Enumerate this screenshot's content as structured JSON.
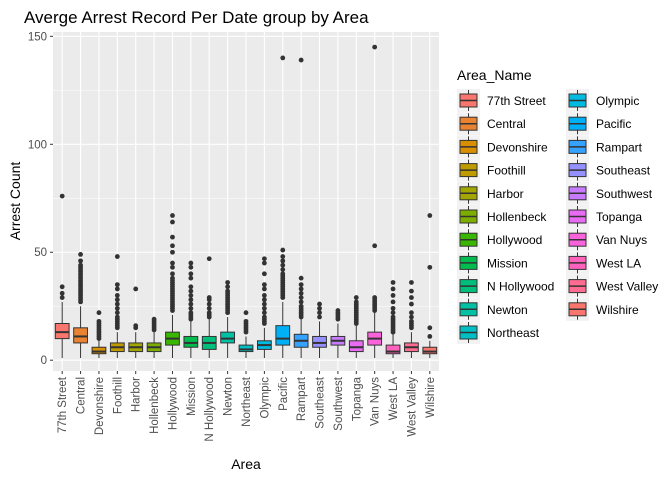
{
  "chart_data": {
    "type": "box",
    "title": "Averge Arrest Record Per Date group by Area",
    "xlabel": "Area",
    "ylabel": "Arrest Count",
    "ylim": [
      -5,
      152
    ],
    "yticks": [
      0,
      50,
      100,
      150
    ],
    "grid": true,
    "legend": {
      "title": "Area_Name",
      "position": "right"
    },
    "categories": [
      "77th Street",
      "Central",
      "Devonshire",
      "Foothill",
      "Harbor",
      "Hollenbeck",
      "Hollywood",
      "Mission",
      "N Hollywood",
      "Newton",
      "Northeast",
      "Olympic",
      "Pacific",
      "Rampart",
      "Southeast",
      "Southwest",
      "Topanga",
      "Van Nuys",
      "West LA",
      "West Valley",
      "Wilshire"
    ],
    "colors": [
      "#F8766D",
      "#EA8331",
      "#D89000",
      "#C09B00",
      "#A3A500",
      "#7CAE00",
      "#39B600",
      "#00BB4E",
      "#00BF7D",
      "#00C1A3",
      "#00BFC4",
      "#00BAE0",
      "#00B0F6",
      "#35A2FF",
      "#9590FF",
      "#C77CFF",
      "#E76BF3",
      "#FA62DB",
      "#FF62BC",
      "#FF6C91",
      "#F8766D"
    ],
    "boxes": [
      {
        "area": "77th Street",
        "min": 1,
        "q1": 10,
        "median": 13,
        "q3": 17,
        "max": 27,
        "outliers": [
          29,
          31,
          34,
          76
        ]
      },
      {
        "area": "Central",
        "min": 1,
        "q1": 8,
        "median": 11,
        "q3": 15,
        "max": 25,
        "outliers": [
          27,
          28,
          29,
          30,
          31,
          32,
          33,
          34,
          35,
          36,
          37,
          38,
          39,
          40,
          41,
          42,
          43,
          44,
          46,
          49
        ]
      },
      {
        "area": "Devonshire",
        "min": 1,
        "q1": 3,
        "median": 4,
        "q3": 6,
        "max": 9,
        "outliers": [
          10,
          11,
          12,
          13,
          14,
          15,
          16,
          17,
          18,
          22
        ]
      },
      {
        "area": "Foothill",
        "min": 1,
        "q1": 4,
        "median": 6,
        "q3": 8,
        "max": 13,
        "outliers": [
          15,
          16,
          17,
          18,
          19,
          20,
          22,
          24,
          26,
          28,
          30,
          33,
          35,
          48
        ]
      },
      {
        "area": "Harbor",
        "min": 1,
        "q1": 4,
        "median": 6,
        "q3": 8,
        "max": 13,
        "outliers": [
          15,
          16,
          33
        ]
      },
      {
        "area": "Hollenbeck",
        "min": 1,
        "q1": 4,
        "median": 6,
        "q3": 8,
        "max": 13,
        "outliers": [
          14,
          15,
          16,
          17,
          18,
          19
        ]
      },
      {
        "area": "Hollywood",
        "min": 1,
        "q1": 7,
        "median": 10,
        "q3": 13,
        "max": 21,
        "outliers": [
          23,
          24,
          25,
          26,
          27,
          28,
          29,
          30,
          31,
          32,
          33,
          34,
          35,
          36,
          37,
          38,
          40,
          43,
          45,
          50,
          53,
          57,
          64,
          67
        ]
      },
      {
        "area": "Mission",
        "min": 1,
        "q1": 6,
        "median": 8,
        "q3": 11,
        "max": 18,
        "outliers": [
          19,
          20,
          21,
          22,
          24,
          26,
          28,
          30,
          32,
          34,
          38,
          40,
          43,
          45
        ]
      },
      {
        "area": "N Hollywood",
        "min": 1,
        "q1": 5,
        "median": 8,
        "q3": 11,
        "max": 19,
        "outliers": [
          20,
          21,
          22,
          24,
          26,
          28,
          29,
          47
        ]
      },
      {
        "area": "Newton",
        "min": 1,
        "q1": 8,
        "median": 10,
        "q3": 13,
        "max": 20,
        "outliers": [
          22,
          23,
          24,
          25,
          26,
          27,
          28,
          29,
          30,
          31,
          32,
          34,
          36
        ]
      },
      {
        "area": "Northeast",
        "min": 1,
        "q1": 4,
        "median": 5,
        "q3": 7,
        "max": 11,
        "outliers": [
          13,
          14,
          15,
          16,
          17,
          18,
          22
        ]
      },
      {
        "area": "Olympic",
        "min": 1,
        "q1": 5,
        "median": 7,
        "q3": 9,
        "max": 15,
        "outliers": [
          17,
          18,
          19,
          20,
          22,
          24,
          26,
          28,
          30,
          33,
          35,
          40,
          45,
          47
        ]
      },
      {
        "area": "Pacific",
        "min": 1,
        "q1": 7,
        "median": 10,
        "q3": 16,
        "max": 27,
        "outliers": [
          29,
          30,
          31,
          32,
          33,
          34,
          35,
          36,
          37,
          38,
          39,
          40,
          42,
          44,
          46,
          48,
          51,
          140
        ]
      },
      {
        "area": "Rampart",
        "min": 1,
        "q1": 6,
        "median": 9,
        "q3": 12,
        "max": 19,
        "outliers": [
          20,
          21,
          22,
          23,
          24,
          25,
          27,
          29,
          31,
          33,
          35,
          38,
          139
        ]
      },
      {
        "area": "Southeast",
        "min": 1,
        "q1": 6,
        "median": 8,
        "q3": 11,
        "max": 18,
        "outliers": [
          20,
          22,
          24,
          26
        ]
      },
      {
        "area": "Southwest",
        "min": 1,
        "q1": 7,
        "median": 9,
        "q3": 11,
        "max": 17,
        "outliers": [
          19,
          20,
          21,
          22,
          23
        ]
      },
      {
        "area": "Topanga",
        "min": 1,
        "q1": 4,
        "median": 6,
        "q3": 9,
        "max": 16,
        "outliers": [
          17,
          18,
          19,
          20,
          21,
          22,
          23,
          24,
          25,
          26,
          27,
          29
        ]
      },
      {
        "area": "Van Nuys",
        "min": 1,
        "q1": 7,
        "median": 10,
        "q3": 13,
        "max": 22,
        "outliers": [
          23,
          24,
          25,
          26,
          27,
          28,
          29,
          53,
          145
        ]
      },
      {
        "area": "West LA",
        "min": 1,
        "q1": 3,
        "median": 4,
        "q3": 7,
        "max": 12,
        "outliers": [
          13,
          14,
          15,
          16,
          17,
          18,
          19,
          20,
          22,
          24,
          27,
          30,
          33,
          36
        ]
      },
      {
        "area": "West Valley",
        "min": 1,
        "q1": 4,
        "median": 6,
        "q3": 8,
        "max": 13,
        "outliers": [
          15,
          16,
          17,
          18,
          20,
          22,
          26,
          29,
          32,
          36
        ]
      },
      {
        "area": "Wilshire",
        "min": 1,
        "q1": 3,
        "median": 4,
        "q3": 6,
        "max": 9,
        "outliers": [
          11,
          15,
          43,
          67
        ]
      }
    ]
  }
}
